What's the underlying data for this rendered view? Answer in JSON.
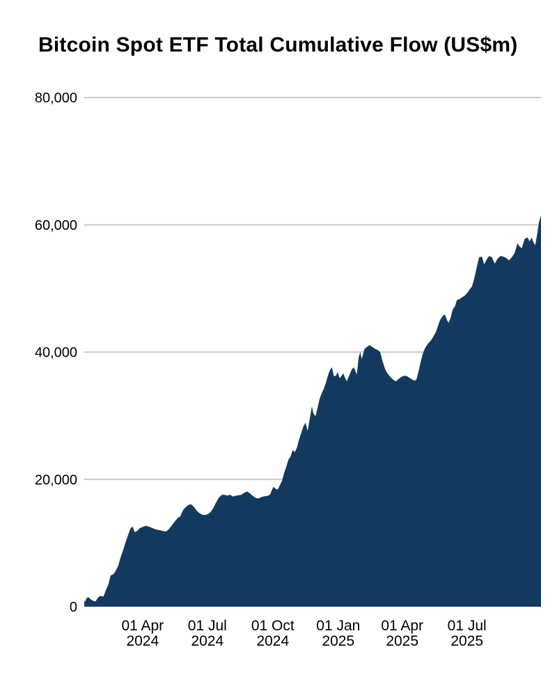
{
  "chart": {
    "title": "Bitcoin Spot ETF Total Cumulative Flow (US$m)"
  },
  "colors": {
    "area_fill": "#123a5f",
    "axis_line": "#123a5f",
    "gridline": "#c9c9c9",
    "text": "#000000",
    "background": "#ffffff"
  },
  "chart_data": {
    "type": "area",
    "title": "Bitcoin Spot ETF Total Cumulative Flow (US$m)",
    "xlabel": "",
    "ylabel": "",
    "grid": true,
    "legend": "none",
    "x_range": [
      "2024-01-10",
      "2025-10-13"
    ],
    "y_axis": {
      "range": [
        0,
        80000
      ],
      "ticks": [
        {
          "value": 80000,
          "label": "80,000"
        },
        {
          "value": 60000,
          "label": "60,000"
        },
        {
          "value": 40000,
          "label": "40,000"
        },
        {
          "value": 20000,
          "label": "20,000"
        },
        {
          "value": 0,
          "label": "0"
        }
      ]
    },
    "x_axis": {
      "ticks": [
        {
          "date": "2024-04-01",
          "line1": "01 Apr",
          "line2": "2024"
        },
        {
          "date": "2024-07-01",
          "line1": "01 Jul",
          "line2": "2024"
        },
        {
          "date": "2024-10-01",
          "line1": "01 Oct",
          "line2": "2024"
        },
        {
          "date": "2025-01-01",
          "line1": "01 Jan",
          "line2": "2025"
        },
        {
          "date": "2025-04-01",
          "line1": "01 Apr",
          "line2": "2025"
        },
        {
          "date": "2025-07-01",
          "line1": "01 Jul",
          "line2": "2025"
        }
      ]
    },
    "series": [
      {
        "name": "Total Cumulative Flow (US$m)",
        "points": [
          [
            "2024-01-10",
            0
          ],
          [
            "2024-01-11",
            700
          ],
          [
            "2024-01-13",
            1350
          ],
          [
            "2024-01-16",
            1500
          ],
          [
            "2024-01-19",
            1150
          ],
          [
            "2024-01-23",
            900
          ],
          [
            "2024-01-26",
            850
          ],
          [
            "2024-01-30",
            1500
          ],
          [
            "2024-02-02",
            1700
          ],
          [
            "2024-02-06",
            1600
          ],
          [
            "2024-02-09",
            2500
          ],
          [
            "2024-02-13",
            3500
          ],
          [
            "2024-02-16",
            4900
          ],
          [
            "2024-02-20",
            5100
          ],
          [
            "2024-02-23",
            5600
          ],
          [
            "2024-02-27",
            6500
          ],
          [
            "2024-03-01",
            7700
          ],
          [
            "2024-03-05",
            9000
          ],
          [
            "2024-03-08",
            10100
          ],
          [
            "2024-03-12",
            11400
          ],
          [
            "2024-03-15",
            12300
          ],
          [
            "2024-03-18",
            12600
          ],
          [
            "2024-03-21",
            11700
          ],
          [
            "2024-03-25",
            11950
          ],
          [
            "2024-03-28",
            12350
          ],
          [
            "2024-04-02",
            12550
          ],
          [
            "2024-04-05",
            12700
          ],
          [
            "2024-04-09",
            12600
          ],
          [
            "2024-04-13",
            12450
          ],
          [
            "2024-04-17",
            12250
          ],
          [
            "2024-04-21",
            12100
          ],
          [
            "2024-04-26",
            12000
          ],
          [
            "2024-05-01",
            11850
          ],
          [
            "2024-05-04",
            11800
          ],
          [
            "2024-05-08",
            12200
          ],
          [
            "2024-05-13",
            12900
          ],
          [
            "2024-05-17",
            13500
          ],
          [
            "2024-05-21",
            14000
          ],
          [
            "2024-05-24",
            14200
          ],
          [
            "2024-05-28",
            15200
          ],
          [
            "2024-06-01",
            15700
          ],
          [
            "2024-06-05",
            16000
          ],
          [
            "2024-06-08",
            16100
          ],
          [
            "2024-06-12",
            15700
          ],
          [
            "2024-06-16",
            15100
          ],
          [
            "2024-06-20",
            14700
          ],
          [
            "2024-06-24",
            14450
          ],
          [
            "2024-06-28",
            14400
          ],
          [
            "2024-07-02",
            14550
          ],
          [
            "2024-07-05",
            14800
          ],
          [
            "2024-07-09",
            15400
          ],
          [
            "2024-07-13",
            16300
          ],
          [
            "2024-07-17",
            17100
          ],
          [
            "2024-07-21",
            17550
          ],
          [
            "2024-07-25",
            17600
          ],
          [
            "2024-07-29",
            17450
          ],
          [
            "2024-08-02",
            17600
          ],
          [
            "2024-08-06",
            17300
          ],
          [
            "2024-08-10",
            17450
          ],
          [
            "2024-08-14",
            17500
          ],
          [
            "2024-08-18",
            17600
          ],
          [
            "2024-08-22",
            17900
          ],
          [
            "2024-08-26",
            18100
          ],
          [
            "2024-08-30",
            17800
          ],
          [
            "2024-09-03",
            17400
          ],
          [
            "2024-09-07",
            17100
          ],
          [
            "2024-09-11",
            17000
          ],
          [
            "2024-09-15",
            17200
          ],
          [
            "2024-09-19",
            17350
          ],
          [
            "2024-09-23",
            17400
          ],
          [
            "2024-09-27",
            17600
          ],
          [
            "2024-09-30",
            18400
          ],
          [
            "2024-10-02",
            18850
          ],
          [
            "2024-10-05",
            18500
          ],
          [
            "2024-10-08",
            18400
          ],
          [
            "2024-10-11",
            19100
          ],
          [
            "2024-10-14",
            19800
          ],
          [
            "2024-10-17",
            21000
          ],
          [
            "2024-10-20",
            22000
          ],
          [
            "2024-10-23",
            23100
          ],
          [
            "2024-10-26",
            23600
          ],
          [
            "2024-10-29",
            24600
          ],
          [
            "2024-11-01",
            24300
          ],
          [
            "2024-11-04",
            25000
          ],
          [
            "2024-11-07",
            26300
          ],
          [
            "2024-11-10",
            27300
          ],
          [
            "2024-11-13",
            28300
          ],
          [
            "2024-11-16",
            28900
          ],
          [
            "2024-11-19",
            27600
          ],
          [
            "2024-11-22",
            29500
          ],
          [
            "2024-11-25",
            31500
          ],
          [
            "2024-11-27",
            30400
          ],
          [
            "2024-11-30",
            29900
          ],
          [
            "2024-12-03",
            31300
          ],
          [
            "2024-12-06",
            32700
          ],
          [
            "2024-12-09",
            33600
          ],
          [
            "2024-12-12",
            34300
          ],
          [
            "2024-12-15",
            35300
          ],
          [
            "2024-12-18",
            36500
          ],
          [
            "2024-12-21",
            37300
          ],
          [
            "2024-12-23",
            37600
          ],
          [
            "2024-12-26",
            36200
          ],
          [
            "2024-12-29",
            36300
          ],
          [
            "2024-12-31",
            36900
          ],
          [
            "2025-01-03",
            35900
          ],
          [
            "2025-01-06",
            36300
          ],
          [
            "2025-01-08",
            36700
          ],
          [
            "2025-01-10",
            36100
          ],
          [
            "2025-01-13",
            35400
          ],
          [
            "2025-01-16",
            36200
          ],
          [
            "2025-01-20",
            37300
          ],
          [
            "2025-01-23",
            37600
          ],
          [
            "2025-01-27",
            36500
          ],
          [
            "2025-01-30",
            39300
          ],
          [
            "2025-02-01",
            40000
          ],
          [
            "2025-02-03",
            38900
          ],
          [
            "2025-02-07",
            40500
          ],
          [
            "2025-02-10",
            40800
          ],
          [
            "2025-02-14",
            41100
          ],
          [
            "2025-02-18",
            40800
          ],
          [
            "2025-02-22",
            40500
          ],
          [
            "2025-02-26",
            40300
          ],
          [
            "2025-03-01",
            40000
          ],
          [
            "2025-03-04",
            38700
          ],
          [
            "2025-03-08",
            37300
          ],
          [
            "2025-03-11",
            36700
          ],
          [
            "2025-03-16",
            36000
          ],
          [
            "2025-03-20",
            35600
          ],
          [
            "2025-03-23",
            35400
          ],
          [
            "2025-03-27",
            35800
          ],
          [
            "2025-03-31",
            36100
          ],
          [
            "2025-04-04",
            36300
          ],
          [
            "2025-04-08",
            36200
          ],
          [
            "2025-04-12",
            35900
          ],
          [
            "2025-04-15",
            35700
          ],
          [
            "2025-04-18",
            35500
          ],
          [
            "2025-04-21",
            35700
          ],
          [
            "2025-04-24",
            37000
          ],
          [
            "2025-04-27",
            38500
          ],
          [
            "2025-04-30",
            39800
          ],
          [
            "2025-05-03",
            40600
          ],
          [
            "2025-05-07",
            41300
          ],
          [
            "2025-05-11",
            41800
          ],
          [
            "2025-05-14",
            42300
          ],
          [
            "2025-05-18",
            43100
          ],
          [
            "2025-05-21",
            44000
          ],
          [
            "2025-05-24",
            45000
          ],
          [
            "2025-05-28",
            45700
          ],
          [
            "2025-05-31",
            45900
          ],
          [
            "2025-06-03",
            45000
          ],
          [
            "2025-06-05",
            44600
          ],
          [
            "2025-06-08",
            45400
          ],
          [
            "2025-06-11",
            46700
          ],
          [
            "2025-06-14",
            47200
          ],
          [
            "2025-06-17",
            48200
          ],
          [
            "2025-06-20",
            48300
          ],
          [
            "2025-06-24",
            48600
          ],
          [
            "2025-06-28",
            48900
          ],
          [
            "2025-07-02",
            49400
          ],
          [
            "2025-07-05",
            49900
          ],
          [
            "2025-07-08",
            50300
          ],
          [
            "2025-07-11",
            51500
          ],
          [
            "2025-07-14",
            53000
          ],
          [
            "2025-07-18",
            54900
          ],
          [
            "2025-07-22",
            55000
          ],
          [
            "2025-07-25",
            53800
          ],
          [
            "2025-07-29",
            54600
          ],
          [
            "2025-08-01",
            55100
          ],
          [
            "2025-08-05",
            54900
          ],
          [
            "2025-08-09",
            53900
          ],
          [
            "2025-08-13",
            54700
          ],
          [
            "2025-08-17",
            55100
          ],
          [
            "2025-08-21",
            55000
          ],
          [
            "2025-08-25",
            54800
          ],
          [
            "2025-08-29",
            54400
          ],
          [
            "2025-09-02",
            54900
          ],
          [
            "2025-09-06",
            55600
          ],
          [
            "2025-09-10",
            57100
          ],
          [
            "2025-09-13",
            56600
          ],
          [
            "2025-09-16",
            56300
          ],
          [
            "2025-09-20",
            57800
          ],
          [
            "2025-09-24",
            58000
          ],
          [
            "2025-09-27",
            57400
          ],
          [
            "2025-09-30",
            58000
          ],
          [
            "2025-10-02",
            57300
          ],
          [
            "2025-10-05",
            56800
          ],
          [
            "2025-10-08",
            58800
          ],
          [
            "2025-10-10",
            60300
          ],
          [
            "2025-10-13",
            61500
          ]
        ]
      }
    ]
  }
}
